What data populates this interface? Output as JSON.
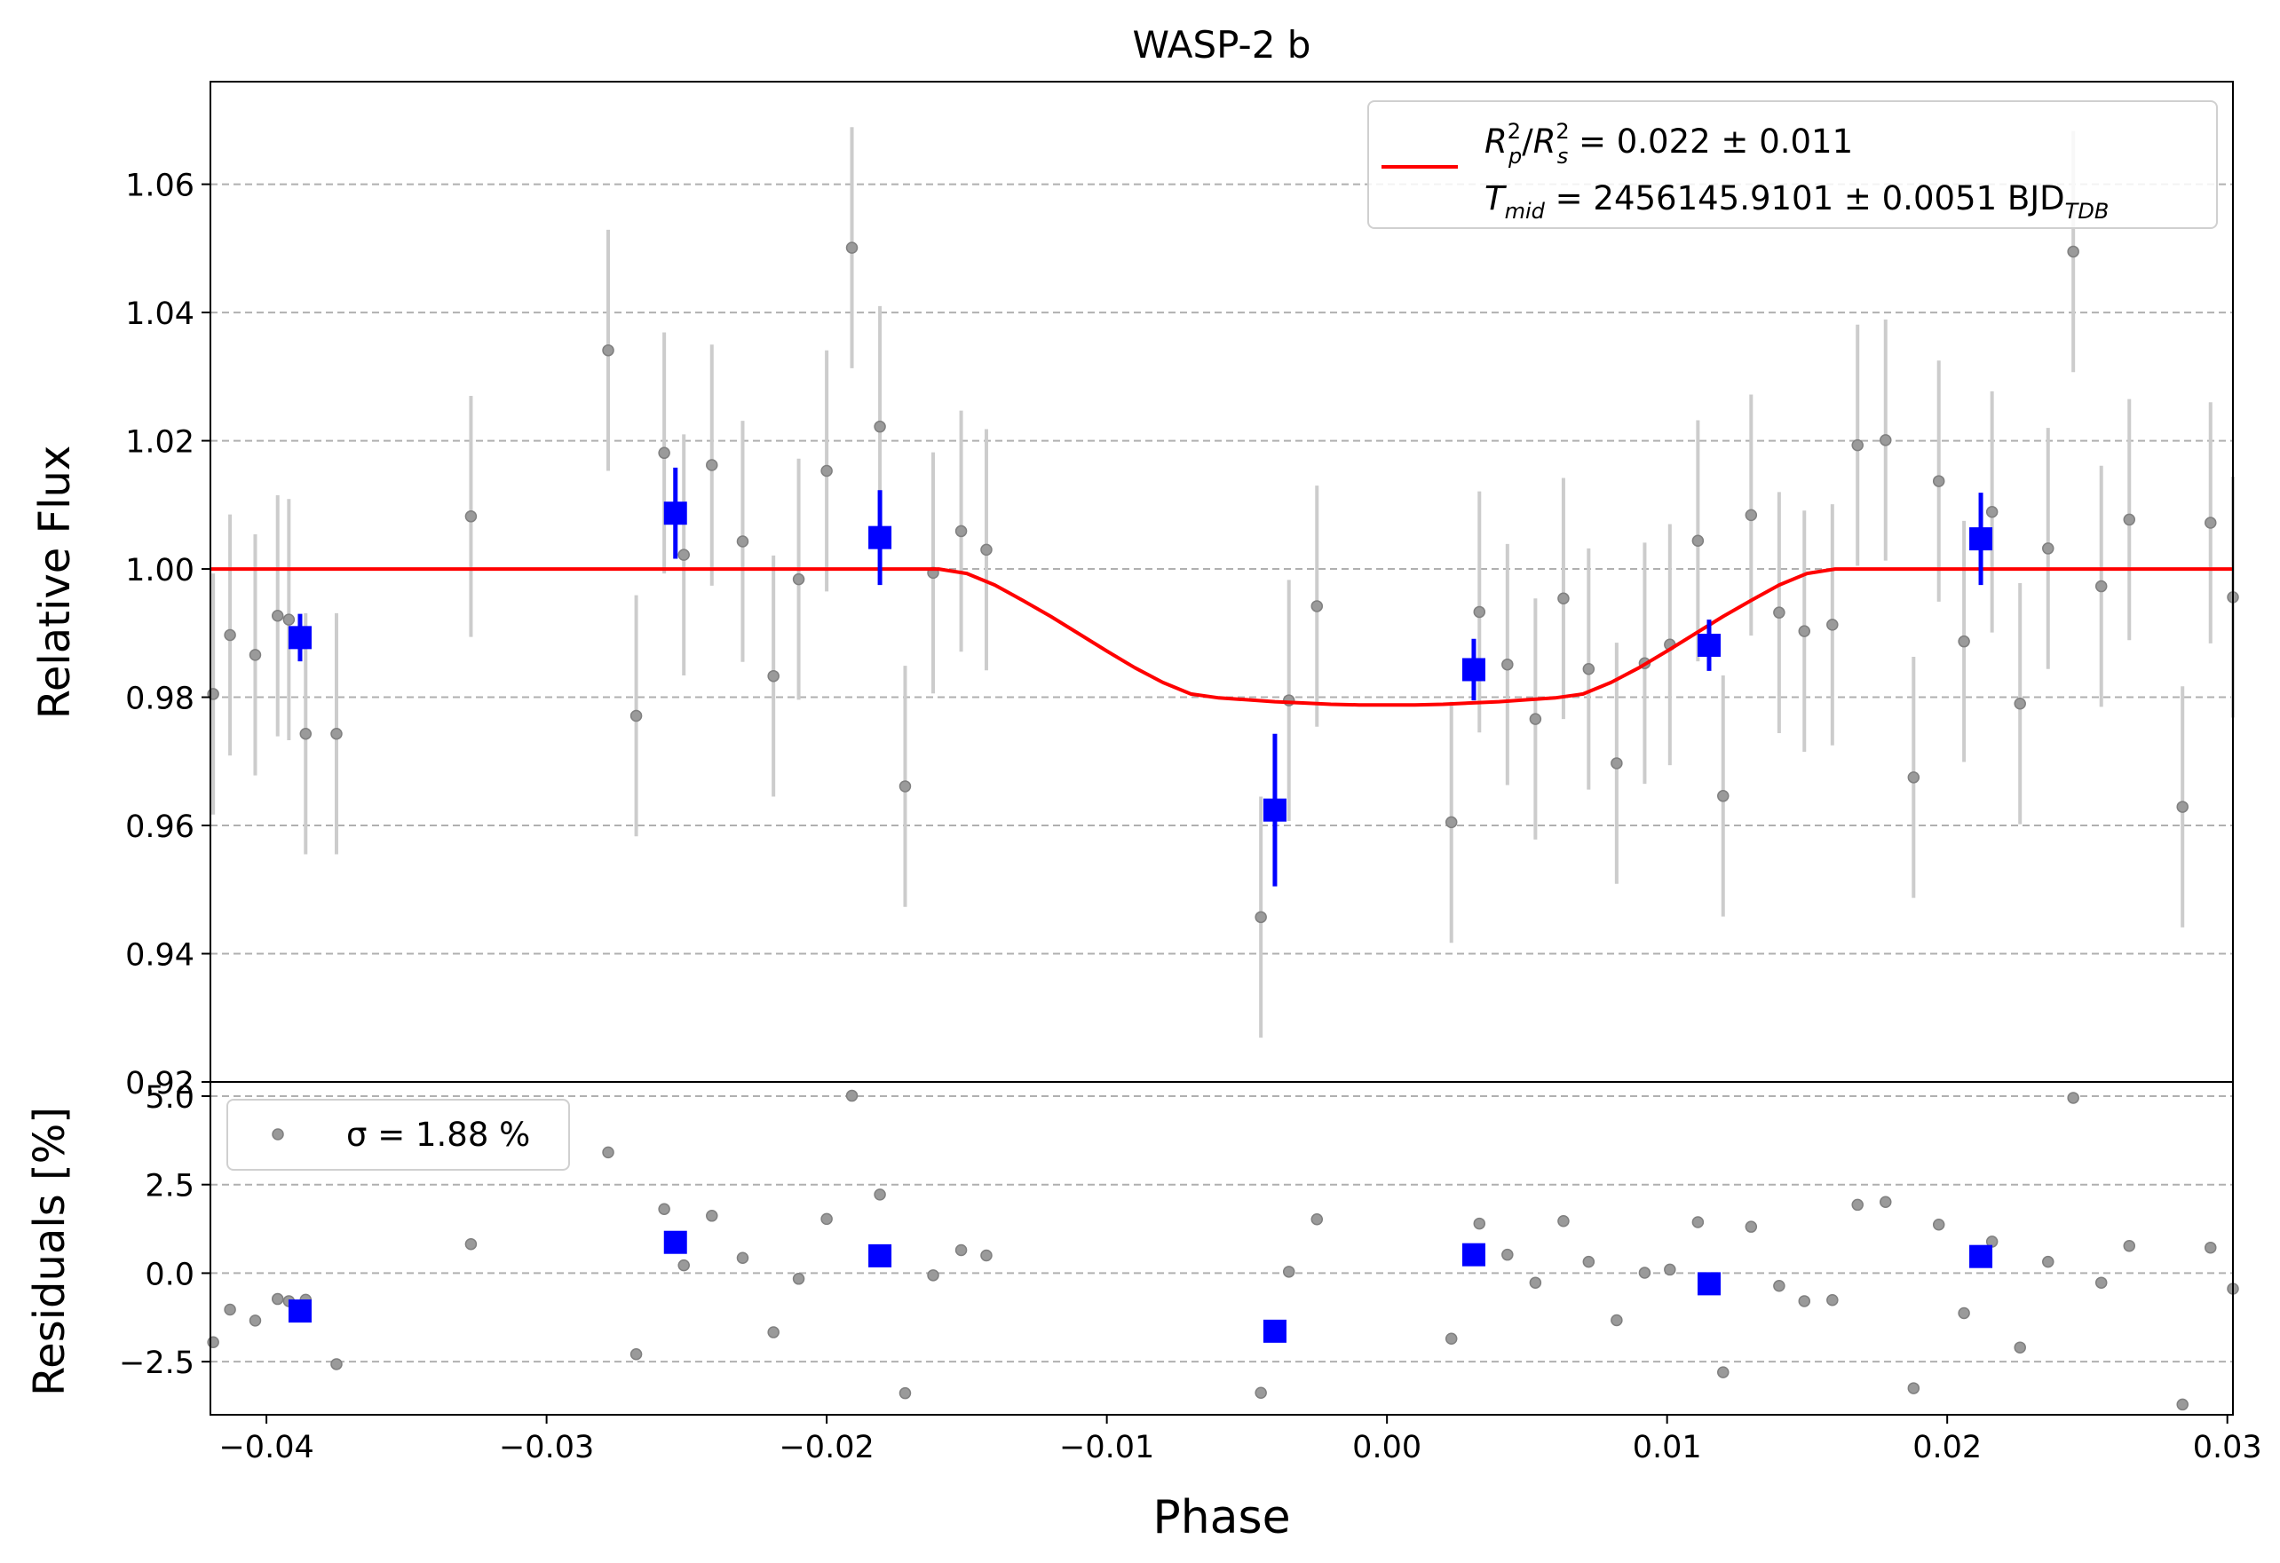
{
  "chart_data": [
    {
      "type": "scatter",
      "title": "WASP-2 b",
      "xlabel": "",
      "ylabel": "Relative Flux",
      "xlim": [
        -0.042,
        0.0302
      ],
      "ylim": [
        0.92,
        1.076
      ],
      "xticks": [
        "−0.04",
        "−0.03",
        "−0.02",
        "−0.01",
        "0.00",
        "0.01",
        "0.02",
        "0.03"
      ],
      "xtick_values": [
        -0.04,
        -0.03,
        -0.02,
        -0.01,
        0.0,
        0.01,
        0.02,
        0.03
      ],
      "yticks": [
        "0.92",
        "0.94",
        "0.96",
        "0.98",
        "1.00",
        "1.02",
        "1.04",
        "1.06"
      ],
      "ytick_values": [
        0.92,
        0.94,
        0.96,
        0.98,
        1.0,
        1.02,
        1.04,
        1.06
      ],
      "grid": "horizontal dashed",
      "legend_position": "top-right",
      "series": [
        {
          "name": "",
          "kind": "points-with-errorbars",
          "color": "#808080",
          "x": [
            -0.0419,
            -0.0413,
            -0.0404,
            -0.0396,
            -0.0392,
            -0.0386,
            -0.0375,
            -0.0327,
            -0.0278,
            -0.0268,
            -0.0258,
            -0.0251,
            -0.0241,
            -0.023,
            -0.0219,
            -0.021,
            -0.02,
            -0.0191,
            -0.0181,
            -0.0172,
            -0.0162,
            -0.0152,
            -0.0143,
            -0.0045,
            -0.0035,
            -0.0025,
            0.0023,
            0.0033,
            0.0043,
            0.0053,
            0.0063,
            0.0072,
            0.0082,
            0.0092,
            0.0101,
            0.0111,
            0.012,
            0.013,
            0.014,
            0.0149,
            0.0159,
            0.0168,
            0.0178,
            0.0188,
            0.0197,
            0.0206,
            0.0216,
            0.0226,
            0.0236,
            0.0245,
            0.0255,
            0.0265,
            0.0284,
            0.0294,
            0.0302
          ],
          "y": [
            0.9805,
            0.9897,
            0.9866,
            0.9927,
            0.9921,
            0.9743,
            0.9743,
            1.0082,
            1.0341,
            0.9771,
            1.0181,
            1.0022,
            1.0162,
            1.0043,
            0.9833,
            0.9984,
            1.0153,
            1.0501,
            1.0222,
            0.9661,
            0.9994,
            1.0059,
            1.003,
            0.9457,
            0.9795,
            0.9942,
            0.9605,
            0.9933,
            0.9851,
            0.9766,
            0.9954,
            0.9844,
            0.9697,
            0.9853,
            0.9882,
            1.0044,
            0.9646,
            1.0084,
            0.9932,
            0.9903,
            0.9913,
            1.0193,
            1.0201,
            0.9675,
            1.0137,
            0.9887,
            1.0089,
            0.979,
            1.0032,
            1.0495,
            0.9973,
            1.0077,
            0.9629,
            1.0072,
            0.9956
          ],
          "yerr": 0.0188
        },
        {
          "name": "",
          "kind": "binned-points-with-errorbars",
          "color": "#0000ff",
          "x": [
            -0.0388,
            -0.0254,
            -0.0181,
            -0.004,
            0.0031,
            0.0115,
            0.0212
          ],
          "y": [
            0.9893,
            1.0087,
            1.0049,
            0.9624,
            0.9843,
            0.9881,
            1.0047
          ],
          "yerr": [
            0.0037,
            0.0071,
            0.0074,
            0.0119,
            0.0048,
            0.004,
            0.0072
          ]
        },
        {
          "name": "R_p^2/R_s^2 = 0.022 ± 0.011 / T_mid = 2456145.9101 ± 0.0051 BJD_TDB",
          "kind": "line",
          "color": "#ff0000",
          "x": [
            -0.042,
            -0.016,
            -0.015,
            -0.014,
            -0.013,
            -0.012,
            -0.011,
            -0.01,
            -0.009,
            -0.008,
            -0.007,
            -0.006,
            -0.005,
            -0.004,
            -0.003,
            -0.002,
            -0.001,
            0.0,
            0.001,
            0.002,
            0.003,
            0.004,
            0.005,
            0.006,
            0.007,
            0.008,
            0.009,
            0.01,
            0.011,
            0.012,
            0.013,
            0.014,
            0.015,
            0.016,
            0.0302
          ],
          "y": [
            1.0,
            1.0,
            0.9993,
            0.9975,
            0.9951,
            0.9926,
            0.9899,
            0.9872,
            0.9846,
            0.9823,
            0.9805,
            0.9799,
            0.9796,
            0.9793,
            0.9791,
            0.9789,
            0.9788,
            0.9788,
            0.9788,
            0.9789,
            0.9791,
            0.9793,
            0.9796,
            0.9799,
            0.9805,
            0.9823,
            0.9846,
            0.9872,
            0.9899,
            0.9926,
            0.9951,
            0.9975,
            0.9993,
            1.0,
            1.0
          ]
        }
      ],
      "legend": {
        "line1_main": "R",
        "line1_text": " = 0.022 ± 0.011",
        "line2_main": "T",
        "line2_sub": "mid",
        "line2_text": " = 2456145.9101 ± 0.0051 BJD",
        "line2_unit_sub": "TDB"
      }
    },
    {
      "type": "scatter",
      "title": "",
      "xlabel": "Phase",
      "ylabel": "Residuals [%]",
      "xlim": [
        -0.042,
        0.0302
      ],
      "ylim": [
        -4.0,
        5.4
      ],
      "xticks": [
        "−0.04",
        "−0.03",
        "−0.02",
        "−0.01",
        "0.00",
        "0.01",
        "0.02",
        "0.03"
      ],
      "xtick_values": [
        -0.04,
        -0.03,
        -0.02,
        -0.01,
        0.0,
        0.01,
        0.02,
        0.03
      ],
      "yticks": [
        "−2.5",
        "0.0",
        "2.5",
        "5.0"
      ],
      "ytick_values": [
        -2.5,
        0.0,
        2.5,
        5.0
      ],
      "grid": "horizontal dashed",
      "legend_position": "top-left",
      "legend_label": "σ = 1.88 %",
      "series": [
        {
          "name": "σ = 1.88 %",
          "color": "#808080",
          "x": [
            -0.0419,
            -0.0413,
            -0.0404,
            -0.0396,
            -0.0392,
            -0.0386,
            -0.0375,
            -0.0327,
            -0.0278,
            -0.0268,
            -0.0258,
            -0.0251,
            -0.0241,
            -0.023,
            -0.0219,
            -0.021,
            -0.02,
            -0.0191,
            -0.0181,
            -0.0172,
            -0.0162,
            -0.0152,
            -0.0143,
            -0.0045,
            -0.0035,
            -0.0025,
            0.0023,
            0.0033,
            0.0043,
            0.0053,
            0.0063,
            0.0072,
            0.0082,
            0.0092,
            0.0101,
            0.0111,
            0.012,
            0.013,
            0.014,
            0.0149,
            0.0159,
            0.0168,
            0.0178,
            0.0188,
            0.0197,
            0.0206,
            0.0216,
            0.0226,
            0.0236,
            0.0245,
            0.0255,
            0.0265,
            0.0284,
            0.0294,
            0.0302
          ],
          "y": [
            -1.95,
            -1.03,
            -1.34,
            -0.73,
            -0.79,
            -0.75,
            -2.57,
            0.82,
            3.41,
            -2.29,
            1.81,
            0.22,
            1.62,
            0.43,
            -1.67,
            -0.16,
            1.53,
            5.01,
            2.22,
            -3.39,
            -0.06,
            0.65,
            0.5,
            -3.38,
            0.04,
            1.52,
            -1.85,
            1.4,
            0.52,
            -0.27,
            1.47,
            0.32,
            -1.33,
            0.01,
            0.1,
            1.44,
            -2.8,
            1.31,
            -0.36,
            -0.79,
            -0.76,
            1.93,
            2.01,
            -3.25,
            1.37,
            -1.13,
            0.89,
            -2.1,
            0.32,
            4.95,
            -0.27,
            0.77,
            -3.71,
            0.72,
            -0.44
          ]
        },
        {
          "name": "",
          "color": "#0000ff",
          "x": [
            -0.0388,
            -0.0254,
            -0.0181,
            -0.004,
            0.0031,
            0.0115,
            0.0212
          ],
          "y": [
            -1.07,
            0.87,
            0.49,
            -1.64,
            0.52,
            -0.3,
            0.47
          ]
        }
      ]
    }
  ]
}
